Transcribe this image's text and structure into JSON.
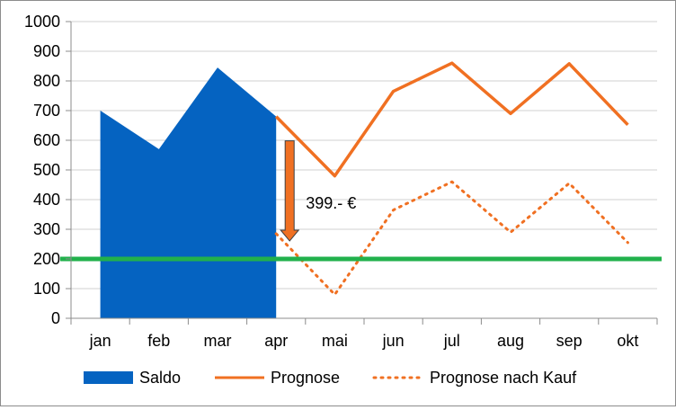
{
  "chart_data": {
    "type": "line",
    "title": "",
    "xlabel": "",
    "ylabel": "",
    "categories": [
      "jan",
      "feb",
      "mar",
      "apr",
      "mai",
      "jun",
      "jul",
      "aug",
      "sep",
      "okt"
    ],
    "ylim": [
      0,
      1000
    ],
    "yticks": [
      "0",
      "100",
      "200",
      "300",
      "400",
      "500",
      "600",
      "700",
      "800",
      "900",
      "1000"
    ],
    "grid": true,
    "legend_position": "bottom",
    "series": [
      {
        "name": "Saldo",
        "kind": "area",
        "color": "#0563c1",
        "values": [
          700,
          570,
          845,
          680,
          null,
          null,
          null,
          null,
          null,
          null
        ]
      },
      {
        "name": "Prognose",
        "kind": "line",
        "color": "#f07022",
        "values": [
          null,
          null,
          null,
          680,
          480,
          765,
          860,
          690,
          858,
          652
        ]
      },
      {
        "name": "Prognose nach Kauf",
        "kind": "dotted",
        "color": "#f07022",
        "values": [
          null,
          null,
          null,
          285,
          80,
          365,
          460,
          290,
          455,
          255
        ]
      }
    ],
    "threshold": {
      "value": 200,
      "color": "#22b14c"
    },
    "annotation": {
      "text": "399.- €",
      "from": 680,
      "to": 285,
      "category": "apr",
      "color": "#f07022"
    }
  }
}
